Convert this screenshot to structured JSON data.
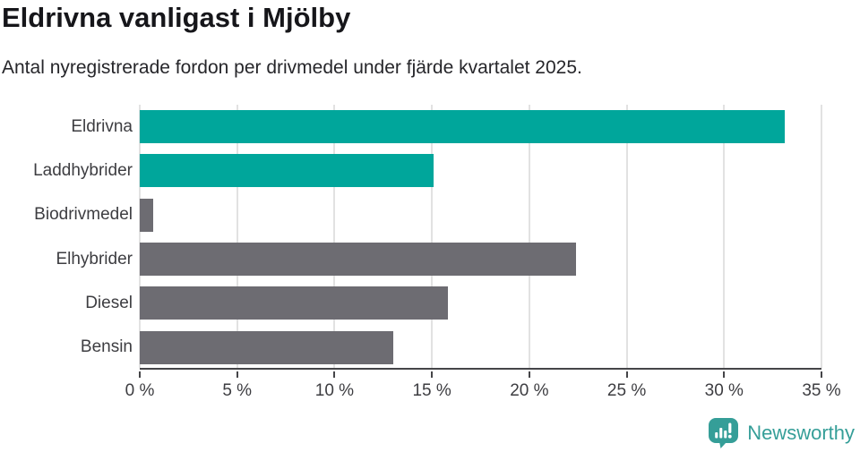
{
  "chart": {
    "title": "Eldrivna vanligast i Mjölby",
    "subtitle": "Antal nyregistrerade fordon per drivmedel under fjärde kvartalet 2025."
  },
  "chart_data": {
    "type": "bar",
    "orientation": "horizontal",
    "title": "Eldrivna vanligast i Mjölby",
    "subtitle": "Antal nyregistrerade fordon per drivmedel under fjärde kvartalet 2025.",
    "categories": [
      "Eldrivna",
      "Laddhybrider",
      "Biodrivmedel",
      "Elhybrider",
      "Diesel",
      "Bensin"
    ],
    "values": [
      33.1,
      15.1,
      0.7,
      22.4,
      15.8,
      13.0
    ],
    "unit": "%",
    "bar_colors": [
      "#00a69b",
      "#00a69b",
      "#6d6c72",
      "#6d6c72",
      "#6d6c72",
      "#6d6c72"
    ],
    "xlim": [
      0,
      35
    ],
    "x_tick_values": [
      0,
      5,
      10,
      15,
      20,
      25,
      30,
      35
    ],
    "x_ticks": [
      "0 %",
      "5 %",
      "10 %",
      "15 %",
      "20 %",
      "25 %",
      "30 %",
      "35 %"
    ],
    "grid": "vertical",
    "legend": "none",
    "xlabel": "",
    "ylabel": ""
  },
  "colors": {
    "highlight": "#00a69b",
    "muted": "#6d6c72",
    "grid": "#e2e2e2",
    "axis": "#454548",
    "logo": "#359e98"
  },
  "footer": {
    "brand": "Newsworthy"
  }
}
